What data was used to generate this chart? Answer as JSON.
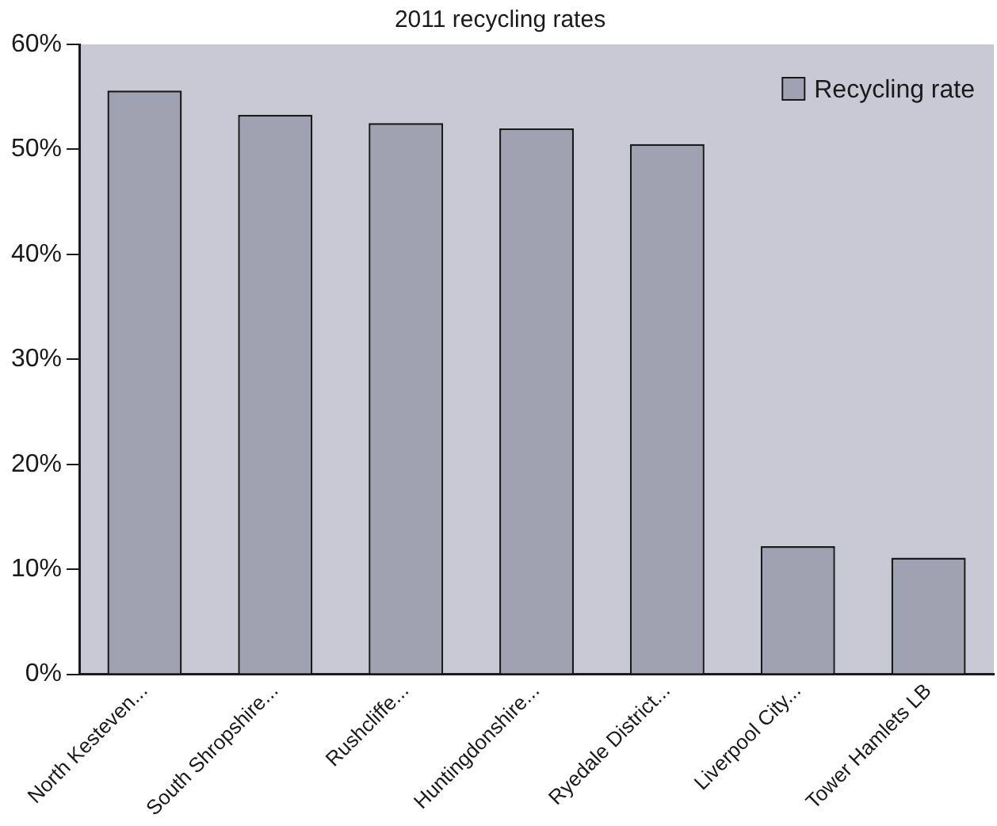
{
  "chart_data": {
    "type": "bar",
    "title": "2011 recycling rates",
    "categories": [
      "North Kesteven...",
      "South Shropshire...",
      "Rushcliffe...",
      "Huntingdonshire...",
      "Ryedale District...",
      "Liverpool City...",
      "Tower Hamlets LB"
    ],
    "series": [
      {
        "name": "Recycling rate",
        "color": "#a0a2b1",
        "values": [
          55.6,
          53.3,
          52.5,
          52.0,
          50.5,
          12.2,
          11.1
        ]
      }
    ],
    "ylim": [
      0,
      60
    ],
    "yticks": [
      {
        "value": 0,
        "label": "0%"
      },
      {
        "value": 10,
        "label": "10%"
      },
      {
        "value": 20,
        "label": "20%"
      },
      {
        "value": 30,
        "label": "30%"
      },
      {
        "value": 40,
        "label": "40%"
      },
      {
        "value": 50,
        "label": "50%"
      },
      {
        "value": 60,
        "label": "60%"
      }
    ],
    "grid": false,
    "legend": "top right"
  }
}
